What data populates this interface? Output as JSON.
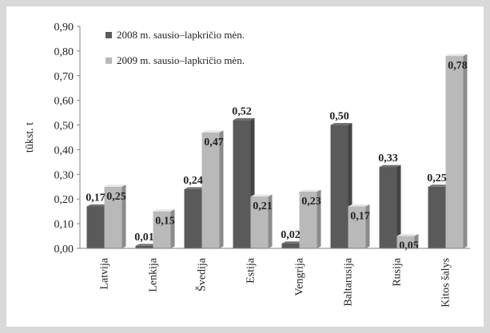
{
  "chart_data": {
    "type": "bar",
    "title": "",
    "xlabel": "",
    "ylabel": "tūkst. t",
    "ylim": [
      0,
      0.9
    ],
    "ytick_step": 0.1,
    "yticks": [
      "0,00",
      "0,10",
      "0,20",
      "0,30",
      "0,40",
      "0,50",
      "0,60",
      "0,70",
      "0,80",
      "0,90"
    ],
    "categories": [
      "Latvija",
      "Lenkija",
      "Švedija",
      "Estija",
      "Vengrija",
      "Baltarusija",
      "Rusija",
      "Kitos šalys"
    ],
    "series": [
      {
        "name": "2008 m. sausio–lapkričio mėn.",
        "values": [
          0.17,
          0.01,
          0.24,
          0.52,
          0.02,
          0.5,
          0.33,
          0.25
        ],
        "labels": [
          "0,17",
          "0,01",
          "0,24",
          "0,52",
          "0,02",
          "0,50",
          "0,33",
          "0,25"
        ],
        "color": "#5a5a5a"
      },
      {
        "name": "2009 m. sausio–lapkričio mėn.",
        "values": [
          0.25,
          0.15,
          0.47,
          0.21,
          0.23,
          0.17,
          0.05,
          0.78
        ],
        "labels": [
          "0,25",
          "0,15",
          "0,47",
          "0,21",
          "0,23",
          "0,17",
          "0,05",
          "0,78"
        ],
        "color": "#b9b9b9"
      }
    ],
    "legend_position": "top-left",
    "grid": false
  }
}
